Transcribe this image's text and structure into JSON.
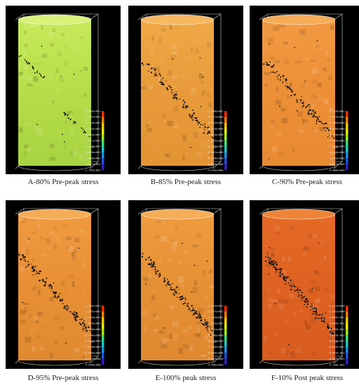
{
  "figure": {
    "panels": [
      {
        "caption": "A-80% Pre-peak stress",
        "fill_top": "#c7ea5a",
        "fill_mid": "#b6dd48",
        "fill_bottom": "#a8d342",
        "cap_color": "#d9f17a",
        "crack_style": "two-short",
        "colorbar_labels": [
          "-5.466e+001",
          "-5.095e+001",
          "-4.724e+001",
          "-4.353e+001",
          "-3.982e+001",
          "-3.611e+001",
          "-3.240e+001",
          "-2.869e+001",
          "-2.498e+001",
          "-2.127e+001",
          "-1.756e+001"
        ]
      },
      {
        "caption": "B-85% Pre-peak stress",
        "fill_top": "#f0a845",
        "fill_mid": "#e89a3a",
        "fill_bottom": "#e39433",
        "cap_color": "#f6b860",
        "crack_style": "long",
        "colorbar_labels": [
          "-1.000e+001",
          "-9.441e+000",
          "-8.882e+000",
          "-8.323e+000",
          "-7.764e+000",
          "-7.205e+000",
          "-6.646e+000",
          "-6.087e+000",
          "-5.528e+000",
          "-4.969e+000",
          "-4.410e+000"
        ]
      },
      {
        "caption": "C-90% Pre-peak stress",
        "fill_top": "#f29a42",
        "fill_mid": "#ec8f36",
        "fill_bottom": "#e88a32",
        "cap_color": "#f6ac58",
        "crack_style": "long",
        "colorbar_labels": [
          "-1.110e+001",
          "-1.043e+001",
          "-9.760e+000",
          "-9.090e+000",
          "-8.420e+000",
          "-7.750e+000",
          "-7.080e+000",
          "-6.410e+000",
          "-5.740e+000",
          "-5.070e+000",
          "-4.400e+000"
        ]
      },
      {
        "caption": "D-95% Pre-peak stress",
        "fill_top": "#f09a40",
        "fill_mid": "#e88f34",
        "fill_bottom": "#e08a30",
        "cap_color": "#f5ac56",
        "crack_style": "long",
        "colorbar_labels": [
          "-1.264e+001",
          "-1.187e+001",
          "-1.110e+001",
          "-1.033e+001",
          "-9.560e+000",
          "-8.790e+000",
          "-8.020e+000",
          "-7.250e+000",
          "-6.480e+000",
          "-5.710e+000",
          "-4.940e+000"
        ]
      },
      {
        "caption": "E-100% peak stress",
        "fill_top": "#ef9b40",
        "fill_mid": "#e69034",
        "fill_bottom": "#df8830",
        "cap_color": "#f5ad58",
        "crack_style": "long",
        "colorbar_labels": [
          "-1.419e+001",
          "-1.327e+001",
          "-1.235e+001",
          "-1.143e+001",
          "-1.051e+001",
          "-9.590e+000",
          "-8.670e+000",
          "-7.750e+000",
          "-6.830e+000",
          "-5.910e+000",
          "-4.990e+000"
        ]
      },
      {
        "caption": "F-10% Post peak stress",
        "fill_top": "#e46a26",
        "fill_mid": "#de6221",
        "fill_bottom": "#d85c1e",
        "cap_color": "#ee8438",
        "crack_style": "long",
        "colorbar_labels": [
          "-1.122e+000",
          "-1.051e+000",
          "-9.802e-001",
          "-9.094e-001",
          "-8.386e-001",
          "-7.678e-001",
          "-6.970e-001",
          "-6.262e-001",
          "-5.554e-001",
          "-4.846e-001",
          "-4.138e-001"
        ]
      }
    ],
    "colorbar_colors": [
      "#ff2a00",
      "#ff7a00",
      "#ffc800",
      "#e8f000",
      "#9cef1a",
      "#34e080",
      "#19c9c9",
      "#1890e6",
      "#2050e0",
      "#3020c0"
    ]
  }
}
